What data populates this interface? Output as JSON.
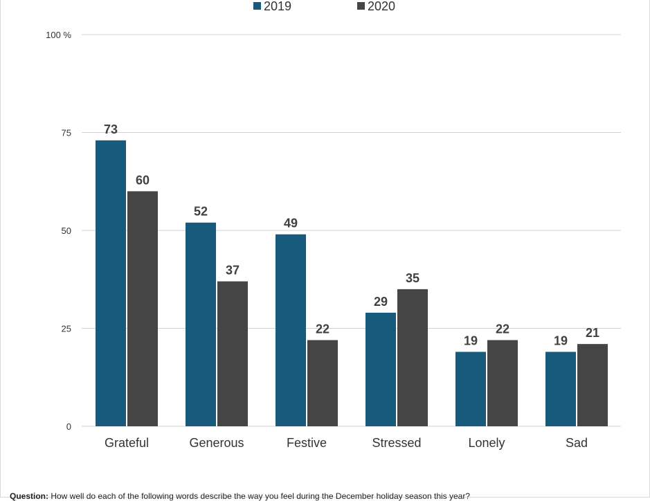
{
  "colors": {
    "series_2019": "#175a7b",
    "series_2020": "#454545",
    "grid": "#d0d0d0",
    "tick_text": "#333333",
    "label_text": "#404040"
  },
  "chart_data": {
    "type": "bar",
    "categories": [
      "Grateful",
      "Generous",
      "Festive",
      "Stressed",
      "Lonely",
      "Sad"
    ],
    "series": [
      {
        "name": "2019",
        "values": [
          73,
          52,
          49,
          29,
          19,
          19
        ]
      },
      {
        "name": "2020",
        "values": [
          60,
          37,
          22,
          35,
          22,
          21
        ]
      }
    ],
    "ylim": [
      0,
      100
    ],
    "y_ticks": [
      {
        "value": 0,
        "label": "0"
      },
      {
        "value": 25,
        "label": "25"
      },
      {
        "value": 50,
        "label": "50"
      },
      {
        "value": 75,
        "label": "75"
      },
      {
        "value": 100,
        "label": "100 %"
      }
    ],
    "grid": true,
    "legend_position": "top-center"
  },
  "footnote": {
    "label": "Question:",
    "text": "How well do each of the following words describe the way you feel during the December holiday season this year?"
  }
}
